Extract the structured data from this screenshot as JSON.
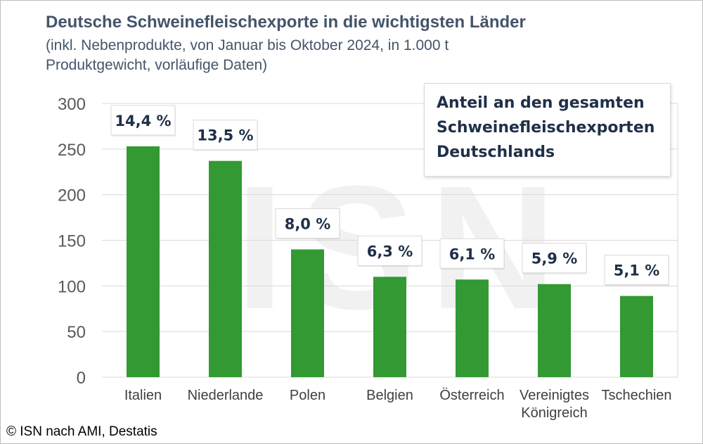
{
  "title": "Deutsche Schweinefleischexporte in die wichtigsten Länder",
  "subtitle": "(inkl. Nebenprodukte, von Januar bis Oktober 2024, in 1.000 t Produktgewicht, vorläufige Daten)",
  "annotation_box": "Anteil an den gesamten Schweinefleischexporten Deutschlands",
  "watermark": "ISN",
  "source": "© ISN nach AMI, Destatis",
  "colors": {
    "bar": "#339933",
    "text": "#44546a",
    "label": "#1f3048",
    "grid": "#d9d9d9"
  },
  "chart_data": {
    "type": "bar",
    "categories": [
      "Italien",
      "Niederlande",
      "Polen",
      "Belgien",
      "Österreich",
      "Vereinigtes Königreich",
      "Tschechien"
    ],
    "category_lines": [
      [
        "Italien"
      ],
      [
        "Niederlande"
      ],
      [
        "Polen"
      ],
      [
        "Belgien"
      ],
      [
        "Österreich"
      ],
      [
        "Vereinigtes",
        "Königreich"
      ],
      [
        "Tschechien"
      ]
    ],
    "values": [
      253,
      237,
      140,
      110,
      107,
      102,
      89
    ],
    "data_labels": [
      "14,4 %",
      "13,5 %",
      "8,0 %",
      "6,3 %",
      "6,1 %",
      "5,9 %",
      "5,1 %"
    ],
    "ylim": [
      0,
      300
    ],
    "yticks": [
      0,
      50,
      100,
      150,
      200,
      250,
      300
    ],
    "grid": true,
    "legend": "none"
  }
}
